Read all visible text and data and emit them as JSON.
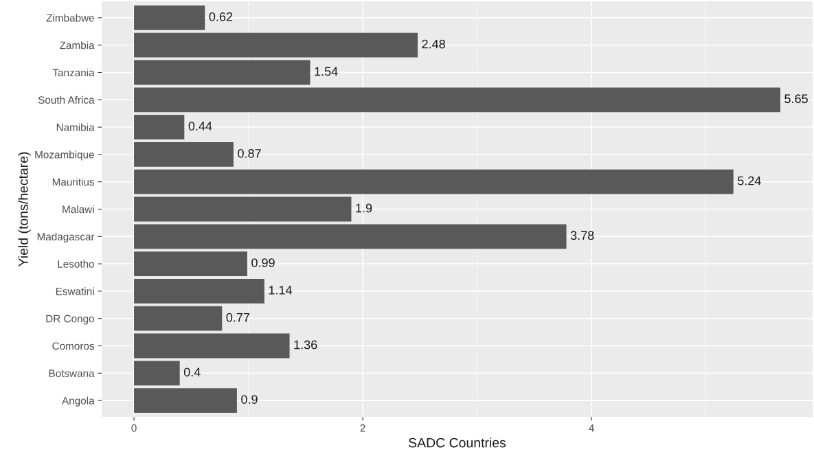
{
  "chart_data": {
    "type": "bar",
    "orientation": "horizontal",
    "xlabel": "SADC Countries",
    "ylabel": "Yield (tons/hectare)",
    "categories": [
      "Zimbabwe",
      "Zambia",
      "Tanzania",
      "South Africa",
      "Namibia",
      "Mozambique",
      "Mauritius",
      "Malawi",
      "Madagascar",
      "Lesotho",
      "Eswatini",
      "DR Congo",
      "Comoros",
      "Botswana",
      "Angola"
    ],
    "values": [
      0.62,
      2.48,
      1.54,
      5.65,
      0.44,
      0.87,
      5.24,
      1.9,
      3.78,
      0.99,
      1.14,
      0.77,
      1.36,
      0.4,
      0.9
    ],
    "color": "#595959",
    "xlim": [
      -0.2825,
      5.9325
    ],
    "xticks": [
      0,
      2,
      4
    ],
    "grid": true,
    "data_labels": true
  }
}
